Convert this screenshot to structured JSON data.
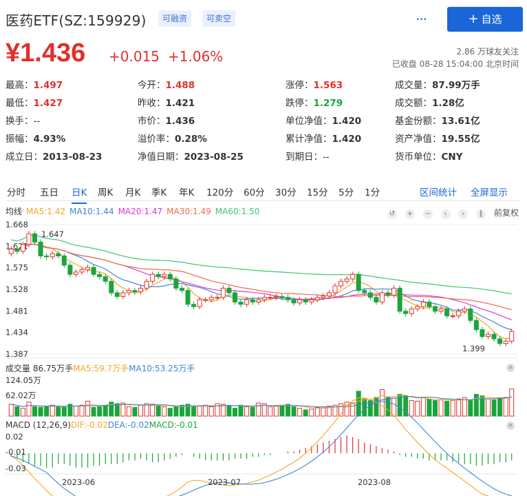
{
  "header": {
    "title": "医药ETF(SZ:159929)",
    "tags": [
      "可融资",
      "可卖空"
    ],
    "more": "···",
    "add_label": "自选"
  },
  "quote": {
    "price": "¥1.436",
    "change": "+0.015",
    "change_pct": "+1.06%",
    "followers": "2.86 万球友关注",
    "status": "已收盘 08-28 15:04:00 北京时间"
  },
  "stats": [
    {
      "label": "最高：",
      "value": "1.497",
      "color": "red"
    },
    {
      "label": "今开：",
      "value": "1.488",
      "color": "red"
    },
    {
      "label": "涨停：",
      "value": "1.563",
      "color": "red"
    },
    {
      "label": "成交量：",
      "value": "87.99万手",
      "color": ""
    },
    {
      "label": "最低：",
      "value": "1.427",
      "color": "red"
    },
    {
      "label": "昨收：",
      "value": "1.421",
      "color": ""
    },
    {
      "label": "跌停：",
      "value": "1.279",
      "color": "green"
    },
    {
      "label": "成交额：",
      "value": "1.28亿",
      "color": ""
    },
    {
      "label": "换手：",
      "value": "--",
      "color": "plain"
    },
    {
      "label": "市价：",
      "value": "1.436",
      "color": ""
    },
    {
      "label": "单位净值：",
      "value": "1.420",
      "color": ""
    },
    {
      "label": "基金份额：",
      "value": "13.61亿",
      "color": ""
    },
    {
      "label": "振幅：",
      "value": "4.93%",
      "color": ""
    },
    {
      "label": "溢价率：",
      "value": "0.28%",
      "color": ""
    },
    {
      "label": "累计净值：",
      "value": "1.420",
      "color": ""
    },
    {
      "label": "资产净值：",
      "value": "19.55亿",
      "color": ""
    },
    {
      "label": "成立日：",
      "value": "2013-08-23",
      "color": ""
    },
    {
      "label": "净值日期：",
      "value": "2023-08-25",
      "color": ""
    },
    {
      "label": "到期日：",
      "value": "--",
      "color": "plain"
    },
    {
      "label": "货币单位：",
      "value": "CNY",
      "color": ""
    }
  ],
  "tabs": [
    "分时",
    "五日",
    "日K",
    "周K",
    "月K",
    "季K",
    "年K",
    "120分",
    "60分",
    "30分",
    "15分",
    "5分",
    "1分"
  ],
  "active_tab": "日K",
  "tab_links": [
    "区间统计",
    "全屏显示"
  ],
  "ma_legend": {
    "label": "均线",
    "items": [
      {
        "text": "MA5:1.42",
        "color": "#f5a623"
      },
      {
        "text": "MA10:1.44",
        "color": "#3b86d8"
      },
      {
        "text": "MA20:1.47",
        "color": "#d63cd0"
      },
      {
        "text": "MA30:1.49",
        "color": "#f06a4a"
      },
      {
        "text": "MA60:1.50",
        "color": "#3cc66b"
      }
    ]
  },
  "fq_label": "前复权",
  "icons": [
    "undo-icon",
    "zoom-in-icon",
    "zoom-out-icon",
    "left-icon",
    "right-icon",
    "pause-icon"
  ],
  "volume_legend": {
    "items": [
      {
        "text": "成交量 86.75万手",
        "color": "#333"
      },
      {
        "text": "MA5:59.7万手",
        "color": "#f5a623"
      },
      {
        "text": "MA10:53.25万手",
        "color": "#3b86d8"
      }
    ]
  },
  "macd_legend": {
    "items": [
      {
        "text": "MACD (12,26,9)",
        "color": "#333"
      },
      {
        "text": "DIF:-0.02",
        "color": "#f5a623"
      },
      {
        "text": "DEA:-0.02",
        "color": "#3b86d8"
      },
      {
        "text": "MACD:-0.01",
        "color": "#1aa53b"
      }
    ]
  },
  "chart_data": {
    "type": "candlestick",
    "price_axis_ticks": [
      "1.668",
      "1.621",
      "1.575",
      "1.528",
      "1.481",
      "1.434",
      "1.387"
    ],
    "price_range": [
      1.387,
      1.668
    ],
    "annotations": [
      {
        "text": "1.647",
        "value": 1.647
      },
      {
        "text": "1.399",
        "value": 1.399
      }
    ],
    "volume_axis_ticks": [
      "124.05万",
      "62.02万"
    ],
    "macd_axis_ticks": [
      "0.02",
      "-0.01",
      "-0.03"
    ],
    "x_labels": [
      "2023-06",
      "2023-07",
      "2023-08"
    ],
    "closes": [
      1.615,
      1.61,
      1.625,
      1.648,
      1.63,
      1.6,
      1.598,
      1.605,
      1.6,
      1.58,
      1.56,
      1.565,
      1.57,
      1.575,
      1.56,
      1.555,
      1.545,
      1.52,
      1.512,
      1.52,
      1.525,
      1.522,
      1.53,
      1.545,
      1.56,
      1.555,
      1.56,
      1.55,
      1.53,
      1.525,
      1.495,
      1.49,
      1.505,
      1.505,
      1.51,
      1.51,
      1.53,
      1.52,
      1.5,
      1.495,
      1.505,
      1.5,
      1.505,
      1.51,
      1.51,
      1.512,
      1.51,
      1.505,
      1.498,
      1.505,
      1.5,
      1.505,
      1.51,
      1.513,
      1.52,
      1.535,
      1.545,
      1.55,
      1.56,
      1.525,
      1.52,
      1.51,
      1.5,
      1.52,
      1.515,
      1.53,
      1.48,
      1.475,
      1.485,
      1.49,
      1.5,
      1.49,
      1.48,
      1.485,
      1.47,
      1.47,
      1.48,
      1.485,
      1.46,
      1.44,
      1.425,
      1.43,
      1.42,
      1.41,
      1.415,
      1.436
    ],
    "volumes": [
      38,
      30,
      25,
      45,
      30,
      28,
      30,
      35,
      30,
      28,
      38,
      32,
      35,
      48,
      28,
      30,
      35,
      45,
      40,
      42,
      30,
      28,
      35,
      40,
      38,
      32,
      30,
      25,
      30,
      35,
      38,
      30,
      32,
      35,
      30,
      40,
      38,
      32,
      25,
      35,
      30,
      28,
      42,
      40,
      30,
      32,
      35,
      38,
      30,
      25,
      20,
      22,
      28,
      30,
      32,
      35,
      40,
      45,
      42,
      80,
      55,
      50,
      60,
      85,
      60,
      58,
      70,
      65,
      50,
      48,
      60,
      55,
      50,
      52,
      48,
      50,
      55,
      60,
      50,
      70,
      65,
      55,
      52,
      58,
      60,
      87
    ],
    "macd_hist": [
      -0.002,
      -0.003,
      -0.005,
      -0.006,
      -0.007,
      -0.007,
      -0.008,
      -0.008,
      -0.006,
      -0.006,
      -0.007,
      -0.008,
      -0.008,
      -0.008,
      -0.007,
      -0.007,
      -0.006,
      -0.006,
      -0.006,
      -0.005,
      -0.004,
      -0.004,
      -0.003,
      -0.004,
      -0.005,
      -0.005,
      -0.004,
      -0.003,
      -0.002,
      -0.001,
      0.0,
      -0.002,
      -0.003,
      -0.004,
      -0.004,
      -0.004,
      -0.004,
      -0.004,
      -0.003,
      -0.003,
      -0.003,
      -0.002,
      -0.002,
      -0.001,
      -0.001,
      0.0,
      0.0,
      0.001,
      0.001,
      0.002,
      0.003,
      0.004,
      0.005,
      0.006,
      0.007,
      0.008,
      0.009,
      0.01,
      0.009,
      0.008,
      0.006,
      0.005,
      0.004,
      0.003,
      0.002,
      0.001,
      -0.001,
      -0.002,
      -0.002,
      -0.003,
      -0.003,
      -0.004,
      -0.004,
      -0.004,
      -0.004,
      -0.005,
      -0.005,
      -0.006,
      -0.006,
      -0.007,
      -0.007,
      -0.006,
      -0.006,
      -0.005,
      -0.005,
      -0.004
    ]
  }
}
